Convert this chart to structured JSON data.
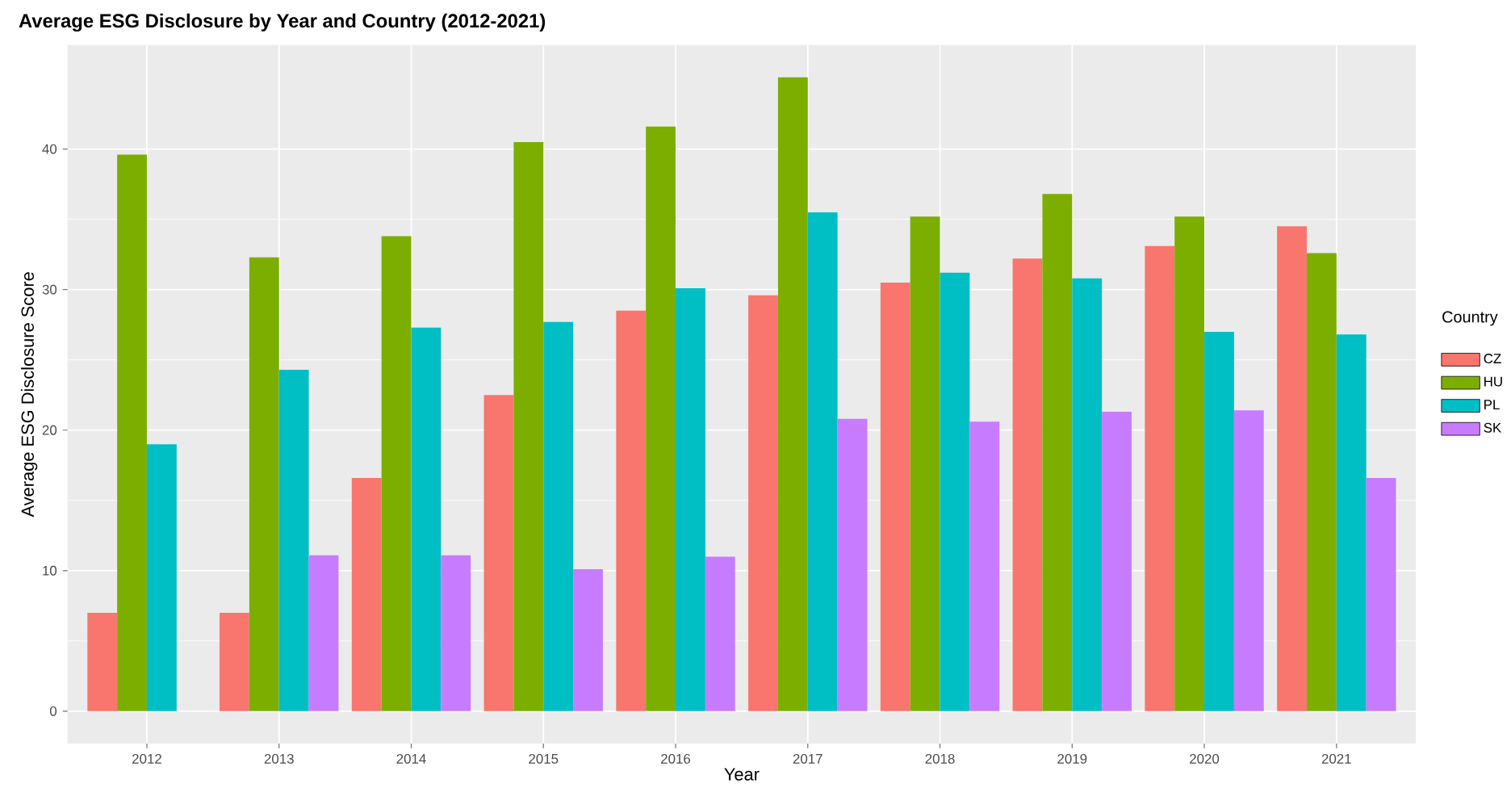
{
  "chart_data": {
    "type": "bar",
    "title": "Average ESG Disclosure by Year and Country (2012-2021)",
    "xlabel": "Year",
    "ylabel": "Average ESG Disclosure Score",
    "legend_title": "Country",
    "categories": [
      "2012",
      "2013",
      "2014",
      "2015",
      "2016",
      "2017",
      "2018",
      "2019",
      "2020",
      "2021"
    ],
    "series": [
      {
        "name": "CZ",
        "color": "#f8766d",
        "values": [
          7.0,
          7.0,
          16.6,
          22.5,
          28.5,
          29.6,
          30.5,
          32.2,
          33.1,
          34.5
        ]
      },
      {
        "name": "HU",
        "color": "#7cae00",
        "values": [
          39.6,
          32.3,
          33.8,
          40.5,
          41.6,
          45.1,
          35.2,
          36.8,
          35.2,
          32.6
        ]
      },
      {
        "name": "PL",
        "color": "#00bfc4",
        "values": [
          19.0,
          24.3,
          27.3,
          27.7,
          30.1,
          35.5,
          31.2,
          30.8,
          27.0,
          26.8
        ]
      },
      {
        "name": "SK",
        "color": "#c77cff",
        "values": [
          null,
          11.1,
          11.1,
          10.1,
          11.0,
          20.8,
          20.6,
          21.3,
          21.4,
          16.6
        ]
      }
    ],
    "ylim": [
      -2.3,
      47.4
    ],
    "yticks": [
      0,
      10,
      20,
      30,
      40
    ],
    "grid": true,
    "legend": "right"
  }
}
